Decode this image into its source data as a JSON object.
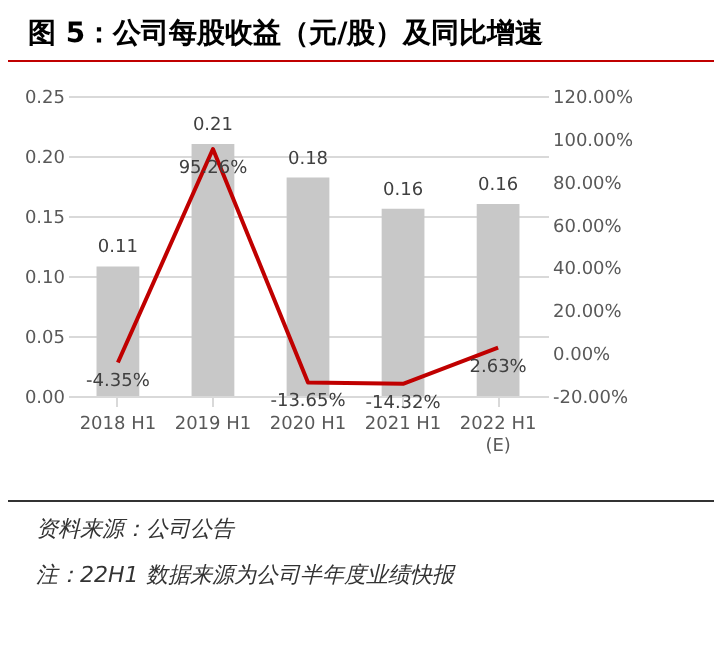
{
  "chart_data": {
    "type": "bar",
    "title": "图 5：公司每股收益（元/股）及同比增速",
    "categories": [
      "2018 H1",
      "2019 H1",
      "2020 H1",
      "2021 H1",
      "2022 H1\n(E)"
    ],
    "series": [
      {
        "color": "#c8c8c8",
        "values": [
          0.108,
          0.21,
          0.182,
          0.156,
          0.16
        ],
        "value_labels": [
          "0.11",
          "0.21",
          "0.18",
          "0.16",
          "0.16"
        ]
      },
      {
        "type": "line",
        "axis": "y2",
        "color": "#c00000",
        "values": [
          -4.35,
          95.26,
          -13.65,
          -14.32,
          2.63
        ],
        "value_labels": [
          "-4.35%",
          "95.26%",
          "-13.65%",
          "-14.32%",
          "2.63%"
        ]
      }
    ],
    "ylim": [
      0,
      0.25
    ],
    "yticks": [
      {
        "value": 0,
        "label": "0.00"
      },
      {
        "value": 0.05,
        "label": "0.05"
      },
      {
        "value": 0.1,
        "label": "0.10"
      },
      {
        "value": 0.15,
        "label": "0.15"
      },
      {
        "value": 0.2,
        "label": "0.20"
      },
      {
        "value": 0.25,
        "label": "0.25"
      }
    ],
    "y2lim": [
      -20,
      120
    ],
    "y2ticks": [
      {
        "value": -20,
        "label": "-20.00%"
      },
      {
        "value": 0,
        "label": "0.00%"
      },
      {
        "value": 20,
        "label": "20.00%"
      },
      {
        "value": 40,
        "label": "40.00%"
      },
      {
        "value": 60,
        "label": "60.00%"
      },
      {
        "value": 80,
        "label": "80.00%"
      },
      {
        "value": 100,
        "label": "100.00%"
      },
      {
        "value": 120,
        "label": "120.00%"
      }
    ],
    "grid": "y",
    "annotations": [
      "资料来源：公司公告",
      "注：22H1 数据来源为公司半年度业绩快报"
    ]
  }
}
